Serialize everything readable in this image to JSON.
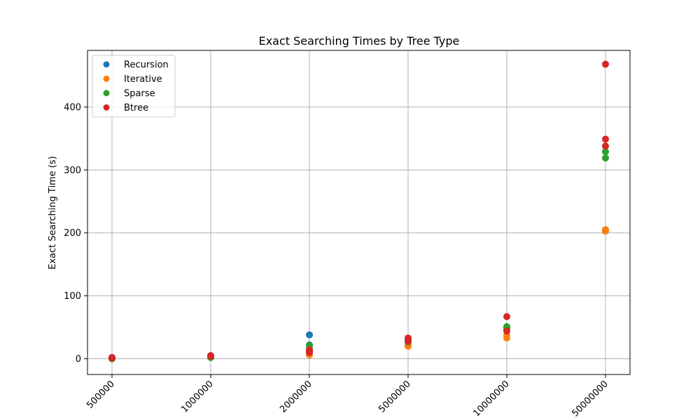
{
  "chart_data": {
    "type": "scatter",
    "title": "Exact Searching Times by Tree Type",
    "xlabel": "",
    "ylabel": "Exact Searching Time (s)",
    "categories": [
      "500000",
      "1000000",
      "2000000",
      "5000000",
      "10000000",
      "50000000"
    ],
    "ylim": [
      -25,
      490
    ],
    "yticks": [
      0,
      100,
      200,
      300,
      400
    ],
    "grid": true,
    "legend_position": "top-left",
    "series": [
      {
        "name": "Recursion",
        "color": "#1f77b4",
        "points": [
          {
            "x": "500000",
            "y": 1
          },
          {
            "x": "500000",
            "y": 2
          },
          {
            "x": "1000000",
            "y": 3
          },
          {
            "x": "1000000",
            "y": 4
          },
          {
            "x": "2000000",
            "y": 38
          },
          {
            "x": "2000000",
            "y": 22
          },
          {
            "x": "5000000",
            "y": 28
          },
          {
            "x": "5000000",
            "y": 30
          },
          {
            "x": "10000000",
            "y": 50
          },
          {
            "x": "10000000",
            "y": 48
          },
          {
            "x": "50000000",
            "y": 205
          },
          {
            "x": "50000000",
            "y": 203
          }
        ]
      },
      {
        "name": "Iterative",
        "color": "#ff7f0e",
        "points": [
          {
            "x": "500000",
            "y": 0
          },
          {
            "x": "500000",
            "y": 1
          },
          {
            "x": "1000000",
            "y": 2
          },
          {
            "x": "1000000",
            "y": 3
          },
          {
            "x": "2000000",
            "y": 6
          },
          {
            "x": "2000000",
            "y": 9
          },
          {
            "x": "5000000",
            "y": 20
          },
          {
            "x": "5000000",
            "y": 22
          },
          {
            "x": "10000000",
            "y": 33
          },
          {
            "x": "10000000",
            "y": 37
          },
          {
            "x": "50000000",
            "y": 203
          },
          {
            "x": "50000000",
            "y": 205
          }
        ]
      },
      {
        "name": "Sparse",
        "color": "#2ca02c",
        "points": [
          {
            "x": "500000",
            "y": 0
          },
          {
            "x": "500000",
            "y": 1
          },
          {
            "x": "1000000",
            "y": 2
          },
          {
            "x": "1000000",
            "y": 3
          },
          {
            "x": "2000000",
            "y": 21
          },
          {
            "x": "2000000",
            "y": 16
          },
          {
            "x": "5000000",
            "y": 27
          },
          {
            "x": "5000000",
            "y": 29
          },
          {
            "x": "10000000",
            "y": 51
          },
          {
            "x": "10000000",
            "y": 49
          },
          {
            "x": "50000000",
            "y": 329
          },
          {
            "x": "50000000",
            "y": 319
          }
        ]
      },
      {
        "name": "Btree",
        "color": "#d62728",
        "points": [
          {
            "x": "500000",
            "y": 2
          },
          {
            "x": "500000",
            "y": 1
          },
          {
            "x": "1000000",
            "y": 5
          },
          {
            "x": "1000000",
            "y": 4
          },
          {
            "x": "2000000",
            "y": 14
          },
          {
            "x": "2000000",
            "y": 10
          },
          {
            "x": "2000000",
            "y": 12
          },
          {
            "x": "5000000",
            "y": 33
          },
          {
            "x": "5000000",
            "y": 28
          },
          {
            "x": "10000000",
            "y": 67
          },
          {
            "x": "10000000",
            "y": 44
          },
          {
            "x": "50000000",
            "y": 468
          },
          {
            "x": "50000000",
            "y": 349
          },
          {
            "x": "50000000",
            "y": 338
          }
        ]
      }
    ]
  }
}
